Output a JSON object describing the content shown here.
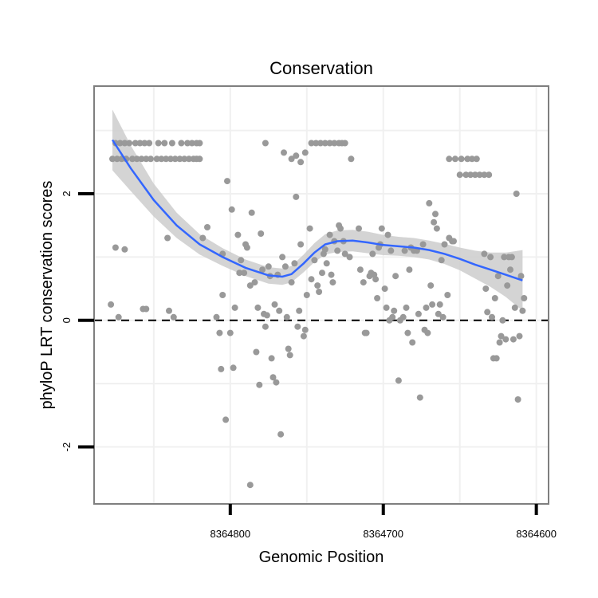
{
  "chart_data": {
    "type": "scatter",
    "title": "Conservation",
    "xlabel": "Genomic Position",
    "ylabel": "phyloP LRT conservation scores",
    "x_reversed": true,
    "xlim": [
      8364889,
      8364592
    ],
    "ylim": [
      -2.9,
      3.7
    ],
    "x_ticks": [
      8364800,
      8364700,
      8364600
    ],
    "y_ticks": [
      -2,
      0,
      2
    ],
    "reference_line": {
      "y": 0,
      "style": "dashed"
    },
    "grid": true,
    "colors": {
      "points": "#999999",
      "smooth": "#3366FF",
      "band": "#CCCCCC",
      "panel_border": "#7f7f7f",
      "grid": "#f0f0f0"
    },
    "points": [
      [
        8364877,
        2.55
      ],
      [
        8364874,
        2.55
      ],
      [
        8364871,
        2.55
      ],
      [
        8364868,
        2.55
      ],
      [
        8364864,
        2.55
      ],
      [
        8364861,
        2.55
      ],
      [
        8364858,
        2.55
      ],
      [
        8364855,
        2.55
      ],
      [
        8364852,
        2.55
      ],
      [
        8364848,
        2.55
      ],
      [
        8364845,
        2.55
      ],
      [
        8364842,
        2.55
      ],
      [
        8364839,
        2.55
      ],
      [
        8364836,
        2.55
      ],
      [
        8364833,
        2.55
      ],
      [
        8364830,
        2.55
      ],
      [
        8364827,
        2.55
      ],
      [
        8364824,
        2.55
      ],
      [
        8364822,
        2.55
      ],
      [
        8364820,
        2.55
      ],
      [
        8364875,
        2.8
      ],
      [
        8364872,
        2.8
      ],
      [
        8364869,
        2.8
      ],
      [
        8364866,
        2.8
      ],
      [
        8364862,
        2.8
      ],
      [
        8364859,
        2.8
      ],
      [
        8364856,
        2.8
      ],
      [
        8364853,
        2.8
      ],
      [
        8364847,
        2.8
      ],
      [
        8364843,
        2.8
      ],
      [
        8364838,
        2.8
      ],
      [
        8364832,
        2.8
      ],
      [
        8364828,
        2.8
      ],
      [
        8364825,
        2.8
      ],
      [
        8364822,
        2.8
      ],
      [
        8364820,
        2.8
      ],
      [
        8364777,
        2.8
      ],
      [
        8364765,
        2.65
      ],
      [
        8364760,
        2.55
      ],
      [
        8364757,
        2.6
      ],
      [
        8364754,
        2.5
      ],
      [
        8364751,
        2.65
      ],
      [
        8364747,
        2.8
      ],
      [
        8364744,
        2.8
      ],
      [
        8364741,
        2.8
      ],
      [
        8364738,
        2.8
      ],
      [
        8364735,
        2.8
      ],
      [
        8364732,
        2.8
      ],
      [
        8364729,
        2.8
      ],
      [
        8364727,
        2.8
      ],
      [
        8364725,
        2.8
      ],
      [
        8364721,
        2.55
      ],
      [
        8364657,
        2.55
      ],
      [
        8364653,
        2.55
      ],
      [
        8364649,
        2.55
      ],
      [
        8364645,
        2.55
      ],
      [
        8364642,
        2.55
      ],
      [
        8364639,
        2.55
      ],
      [
        8364650,
        2.3
      ],
      [
        8364646,
        2.3
      ],
      [
        8364643,
        2.3
      ],
      [
        8364640,
        2.3
      ],
      [
        8364637,
        2.3
      ],
      [
        8364634,
        2.3
      ],
      [
        8364631,
        2.3
      ],
      [
        8364878,
        0.25
      ],
      [
        8364875,
        1.15
      ],
      [
        8364873,
        0.05
      ],
      [
        8364869,
        1.12
      ],
      [
        8364857,
        0.18
      ],
      [
        8364855,
        0.18
      ],
      [
        8364841,
        1.3
      ],
      [
        8364840,
        0.15
      ],
      [
        8364837,
        0.05
      ],
      [
        8364818,
        1.3
      ],
      [
        8364815,
        1.47
      ],
      [
        8364809,
        0.05
      ],
      [
        8364807,
        -0.2
      ],
      [
        8364805,
        0.4
      ],
      [
        8364806,
        -0.77
      ],
      [
        8364805,
        1.05
      ],
      [
        8364803,
        -1.57
      ],
      [
        8364802,
        2.2
      ],
      [
        8364800,
        -0.2
      ],
      [
        8364799,
        1.75
      ],
      [
        8364798,
        -0.75
      ],
      [
        8364797,
        0.2
      ],
      [
        8364795,
        1.35
      ],
      [
        8364794,
        0.75
      ],
      [
        8364793,
        0.95
      ],
      [
        8364791,
        0.75
      ],
      [
        8364790,
        1.2
      ],
      [
        8364789,
        1.15
      ],
      [
        8364787,
        0.55
      ],
      [
        8364787,
        -2.6
      ],
      [
        8364786,
        1.7
      ],
      [
        8364784,
        0.6
      ],
      [
        8364783,
        -0.5
      ],
      [
        8364782,
        0.2
      ],
      [
        8364781,
        -1.02
      ],
      [
        8364780,
        1.37
      ],
      [
        8364779,
        0.8
      ],
      [
        8364778,
        0.1
      ],
      [
        8364777,
        -0.1
      ],
      [
        8364776,
        0.08
      ],
      [
        8364775,
        0.85
      ],
      [
        8364774,
        0.7
      ],
      [
        8364773,
        -0.6
      ],
      [
        8364772,
        -0.9
      ],
      [
        8364771,
        0.25
      ],
      [
        8364770,
        -0.98
      ],
      [
        8364769,
        0.72
      ],
      [
        8364768,
        0.15
      ],
      [
        8364767,
        -1.8
      ],
      [
        8364766,
        1.0
      ],
      [
        8364764,
        0.85
      ],
      [
        8364763,
        0.05
      ],
      [
        8364762,
        -0.45
      ],
      [
        8364761,
        -0.55
      ],
      [
        8364760,
        0.6
      ],
      [
        8364758,
        0.9
      ],
      [
        8364757,
        1.95
      ],
      [
        8364756,
        -0.1
      ],
      [
        8364755,
        0.15
      ],
      [
        8364754,
        1.2
      ],
      [
        8364752,
        -0.25
      ],
      [
        8364751,
        -0.15
      ],
      [
        8364750,
        0.4
      ],
      [
        8364748,
        1.45
      ],
      [
        8364747,
        0.65
      ],
      [
        8364745,
        0.95
      ],
      [
        8364743,
        0.55
      ],
      [
        8364742,
        0.45
      ],
      [
        8364740,
        0.75
      ],
      [
        8364739,
        1.05
      ],
      [
        8364738,
        1.12
      ],
      [
        8364737,
        0.9
      ],
      [
        8364735,
        1.35
      ],
      [
        8364734,
        0.72
      ],
      [
        8364733,
        0.6
      ],
      [
        8364732,
        1.25
      ],
      [
        8364730,
        1.1
      ],
      [
        8364729,
        1.5
      ],
      [
        8364728,
        1.45
      ],
      [
        8364726,
        1.25
      ],
      [
        8364725,
        1.05
      ],
      [
        8364722,
        1.0
      ],
      [
        8364716,
        1.45
      ],
      [
        8364715,
        0.8
      ],
      [
        8364713,
        0.6
      ],
      [
        8364712,
        -0.2
      ],
      [
        8364711,
        -0.2
      ],
      [
        8364709,
        0.7
      ],
      [
        8364708,
        0.75
      ],
      [
        8364707,
        1.05
      ],
      [
        8364706,
        0.72
      ],
      [
        8364705,
        0.65
      ],
      [
        8364704,
        0.35
      ],
      [
        8364703,
        1.15
      ],
      [
        8364702,
        1.2
      ],
      [
        8364701,
        1.45
      ],
      [
        8364699,
        0.5
      ],
      [
        8364698,
        0.2
      ],
      [
        8364697,
        1.35
      ],
      [
        8364696,
        0.0
      ],
      [
        8364695,
        1.1
      ],
      [
        8364694,
        0.05
      ],
      [
        8364693,
        0.15
      ],
      [
        8364692,
        0.7
      ],
      [
        8364690,
        -0.95
      ],
      [
        8364689,
        0.0
      ],
      [
        8364687,
        0.05
      ],
      [
        8364686,
        1.1
      ],
      [
        8364685,
        0.2
      ],
      [
        8364684,
        -0.2
      ],
      [
        8364683,
        0.8
      ],
      [
        8364682,
        1.15
      ],
      [
        8364681,
        -0.35
      ],
      [
        8364680,
        1.1
      ],
      [
        8364678,
        1.1
      ],
      [
        8364677,
        0.1
      ],
      [
        8364676,
        -1.22
      ],
      [
        8364674,
        1.2
      ],
      [
        8364673,
        -0.15
      ],
      [
        8364672,
        0.2
      ],
      [
        8364671,
        -0.2
      ],
      [
        8364670,
        1.85
      ],
      [
        8364669,
        0.55
      ],
      [
        8364668,
        0.25
      ],
      [
        8364667,
        1.55
      ],
      [
        8364666,
        1.68
      ],
      [
        8364665,
        1.45
      ],
      [
        8364664,
        0.1
      ],
      [
        8364663,
        0.25
      ],
      [
        8364662,
        0.95
      ],
      [
        8364661,
        0.05
      ],
      [
        8364660,
        1.2
      ],
      [
        8364658,
        0.4
      ],
      [
        8364657,
        1.3
      ],
      [
        8364655,
        1.25
      ],
      [
        8364654,
        1.25
      ],
      [
        8364634,
        1.05
      ],
      [
        8364633,
        0.5
      ],
      [
        8364632,
        0.13
      ],
      [
        8364630,
        1.0
      ],
      [
        8364629,
        0.05
      ],
      [
        8364628,
        -0.6
      ],
      [
        8364627,
        0.35
      ],
      [
        8364626,
        -0.6
      ],
      [
        8364625,
        0.7
      ],
      [
        8364624,
        -0.35
      ],
      [
        8364623,
        -0.25
      ],
      [
        8364622,
        0.0
      ],
      [
        8364621,
        1.0
      ],
      [
        8364620,
        -0.3
      ],
      [
        8364619,
        0.55
      ],
      [
        8364618,
        1.0
      ],
      [
        8364617,
        0.8
      ],
      [
        8364616,
        1.0
      ],
      [
        8364615,
        -0.3
      ],
      [
        8364614,
        0.2
      ],
      [
        8364613,
        2.0
      ],
      [
        8364612,
        -1.25
      ],
      [
        8364611,
        -0.25
      ],
      [
        8364610,
        0.7
      ],
      [
        8364609,
        0.15
      ],
      [
        8364608,
        0.35
      ]
    ],
    "smooth": [
      [
        8364877,
        2.85
      ],
      [
        8364865,
        2.4
      ],
      [
        8364850,
        1.9
      ],
      [
        8364835,
        1.5
      ],
      [
        8364820,
        1.2
      ],
      [
        8364805,
        1.0
      ],
      [
        8364790,
        0.83
      ],
      [
        8364775,
        0.71
      ],
      [
        8364766,
        0.69
      ],
      [
        8364760,
        0.73
      ],
      [
        8364752,
        0.9
      ],
      [
        8364745,
        1.07
      ],
      [
        8364738,
        1.2
      ],
      [
        8364730,
        1.25
      ],
      [
        8364720,
        1.26
      ],
      [
        8364710,
        1.23
      ],
      [
        8364700,
        1.19
      ],
      [
        8364690,
        1.17
      ],
      [
        8364680,
        1.15
      ],
      [
        8364670,
        1.11
      ],
      [
        8364660,
        1.05
      ],
      [
        8364650,
        0.97
      ],
      [
        8364640,
        0.88
      ],
      [
        8364630,
        0.8
      ],
      [
        8364620,
        0.72
      ],
      [
        8364609,
        0.63
      ]
    ],
    "band_half_width": [
      0.48,
      0.36,
      0.26,
      0.2,
      0.16,
      0.14,
      0.13,
      0.13,
      0.13,
      0.13,
      0.14,
      0.15,
      0.16,
      0.17,
      0.17,
      0.17,
      0.16,
      0.15,
      0.15,
      0.15,
      0.16,
      0.18,
      0.22,
      0.27,
      0.35,
      0.48
    ]
  }
}
